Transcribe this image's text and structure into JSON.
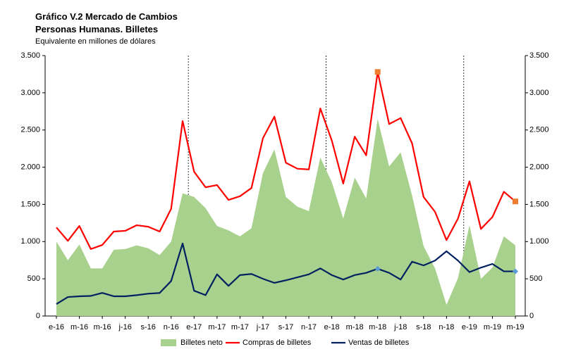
{
  "chart_data": {
    "type": "line",
    "title": "Gráfico V.2 Mercado de Cambios",
    "subtitle": "Personas Humanas. Billetes",
    "y_label": "Equivalente en millones de dólares",
    "categories": [
      "e-16",
      null,
      "m-16",
      null,
      "m-16",
      null,
      "j-16",
      null,
      "s-16",
      null,
      "n-16",
      null,
      "e-17",
      null,
      "m-17",
      null,
      "m-17",
      null,
      "j-17",
      null,
      "s-17",
      null,
      "n-17",
      null,
      "e-18",
      null,
      "m-18",
      null,
      "m-18",
      null,
      "j-18",
      null,
      "s-18",
      null,
      "n-18",
      null,
      "e-19",
      null,
      "m-19",
      null,
      "m-19"
    ],
    "series": [
      {
        "name": "Billetes neto",
        "kind": "area",
        "color": "#a9d18e",
        "values": [
          1000,
          750,
          960,
          640,
          640,
          890,
          900,
          950,
          910,
          820,
          1000,
          1650,
          1600,
          1450,
          1210,
          1150,
          1070,
          1180,
          1920,
          2240,
          1600,
          1470,
          1410,
          2130,
          1800,
          1310,
          1860,
          1580,
          2650,
          2010,
          2200,
          1620,
          940,
          640,
          150,
          510,
          1220,
          500,
          650,
          1070,
          950
        ]
      },
      {
        "name": "Compras de billetes",
        "kind": "line",
        "color": "#ff0000",
        "marker_color": "#ed7d31",
        "marker": "square",
        "values": [
          1190,
          1010,
          1210,
          900,
          955,
          1135,
          1145,
          1220,
          1200,
          1135,
          1440,
          2620,
          1940,
          1730,
          1760,
          1560,
          1610,
          1720,
          2390,
          2680,
          2060,
          1980,
          1970,
          2790,
          2360,
          1780,
          2410,
          2160,
          3280,
          2580,
          2660,
          2320,
          1600,
          1400,
          1020,
          1310,
          1810,
          1170,
          1330,
          1670,
          1540
        ]
      },
      {
        "name": "Ventas de billetes",
        "kind": "line",
        "color": "#002060",
        "marker_color": "#5b9bd5",
        "marker": "diamond",
        "values": [
          160,
          255,
          265,
          270,
          310,
          265,
          265,
          280,
          300,
          310,
          470,
          975,
          340,
          280,
          560,
          405,
          550,
          565,
          500,
          445,
          480,
          520,
          560,
          640,
          550,
          490,
          550,
          580,
          635,
          580,
          490,
          730,
          680,
          745,
          870,
          745,
          590,
          650,
          700,
          600,
          600
        ]
      }
    ],
    "highlight": [
      28,
      40
    ],
    "ylim": [
      0,
      3500
    ],
    "yticks": [
      0,
      500,
      {
        "value": 1000,
        "label": "1.000"
      },
      {
        "value": 1500,
        "label": "1.500"
      },
      {
        "value": 2000,
        "label": "2.000"
      },
      {
        "value": 2500,
        "label": "2.500"
      },
      {
        "value": 3000,
        "label": "3.000"
      },
      {
        "value": 3500,
        "label": "3.500"
      }
    ],
    "secondary_axis_labels": true,
    "legend": "bottom"
  }
}
